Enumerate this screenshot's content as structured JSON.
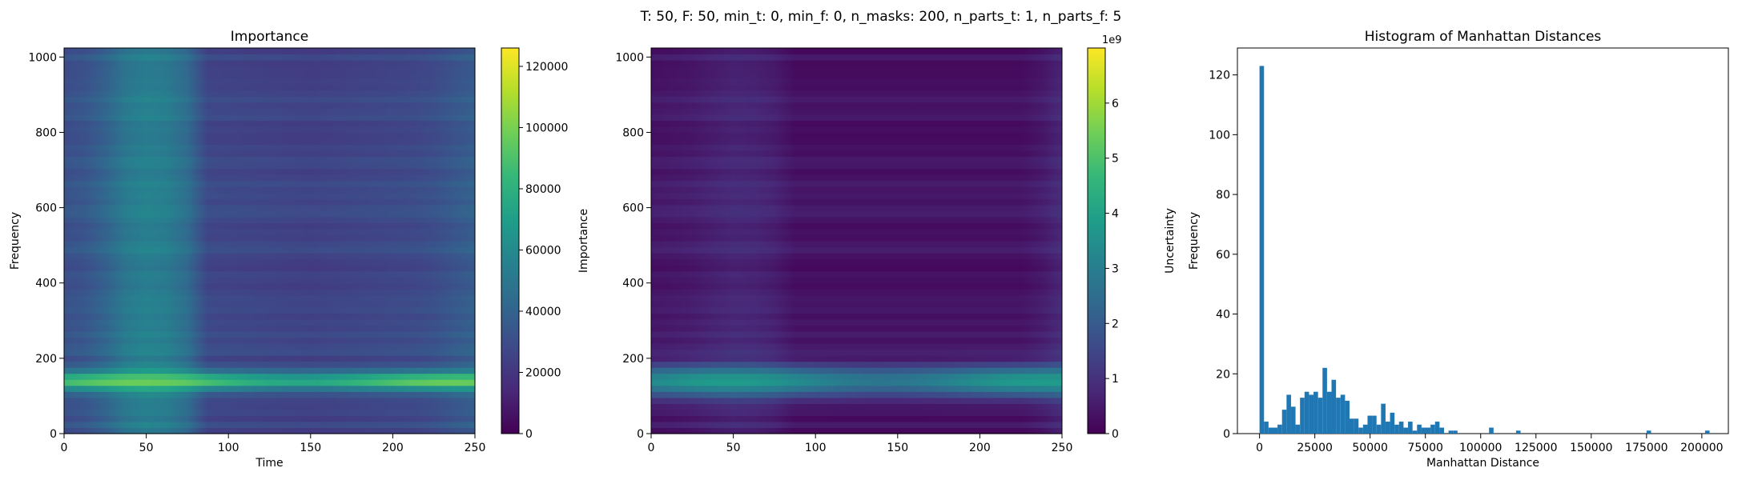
{
  "suptitle": "T: 50, F: 50, min_t: 0, min_f: 0, n_masks: 200, n_parts_t: 1, n_parts_f: 5",
  "chart_data": [
    {
      "type": "heatmap",
      "title": "Importance",
      "xlabel": "Time",
      "ylabel": "Frequency",
      "xlim": [
        0,
        250
      ],
      "ylim": [
        0,
        1024
      ],
      "xticks": [
        0,
        50,
        100,
        150,
        200,
        250
      ],
      "yticks": [
        0,
        200,
        400,
        600,
        800,
        1000
      ],
      "colormap": "viridis",
      "colorbar": {
        "label": "Importance",
        "range": [
          0,
          126000
        ],
        "ticks": [
          0,
          20000,
          40000,
          60000,
          80000,
          100000,
          120000
        ],
        "offset_text": ""
      },
      "time_profile": [
        {
          "t": 0,
          "v": 0.25
        },
        {
          "t": 20,
          "v": 0.28
        },
        {
          "t": 30,
          "v": 0.36
        },
        {
          "t": 42,
          "v": 0.43
        },
        {
          "t": 55,
          "v": 0.44
        },
        {
          "t": 70,
          "v": 0.4
        },
        {
          "t": 78,
          "v": 0.33
        },
        {
          "t": 82,
          "v": 0.22
        },
        {
          "t": 150,
          "v": 0.2
        },
        {
          "t": 220,
          "v": 0.23
        },
        {
          "t": 240,
          "v": 0.28
        },
        {
          "t": 250,
          "v": 0.3
        }
      ],
      "bright_band": {
        "center": 140,
        "width": 24,
        "peak": 0.78
      }
    },
    {
      "type": "heatmap",
      "title": "",
      "xlabel": "",
      "ylabel": "",
      "xlim": [
        0,
        250
      ],
      "ylim": [
        0,
        1024
      ],
      "xticks": [
        0,
        50,
        100,
        150,
        200,
        250
      ],
      "yticks": [
        0,
        200,
        400,
        600,
        800,
        1000
      ],
      "colormap": "viridis",
      "colorbar": {
        "label": "Uncertainty",
        "range": [
          0,
          7.0
        ],
        "ticks": [
          0,
          1,
          2,
          3,
          4,
          5,
          6
        ],
        "offset_text": "1e9"
      },
      "time_profile": [
        {
          "t": 0,
          "v": 0.06
        },
        {
          "t": 30,
          "v": 0.08
        },
        {
          "t": 45,
          "v": 0.11
        },
        {
          "t": 60,
          "v": 0.11
        },
        {
          "t": 75,
          "v": 0.09
        },
        {
          "t": 85,
          "v": 0.05
        },
        {
          "t": 230,
          "v": 0.05
        },
        {
          "t": 245,
          "v": 0.1
        },
        {
          "t": 250,
          "v": 0.12
        }
      ],
      "bright_band": {
        "center": 140,
        "width": 40,
        "peak": 0.55
      }
    },
    {
      "type": "bar",
      "title": "Histogram of Manhattan Distances",
      "xlabel": "Manhattan Distance",
      "ylabel": "Frequency",
      "xlim": [
        -10000,
        212000
      ],
      "ylim": [
        0,
        129
      ],
      "xticks": [
        0,
        25000,
        50000,
        75000,
        100000,
        125000,
        150000,
        175000,
        200000
      ],
      "yticks": [
        0,
        20,
        40,
        60,
        80,
        100,
        120
      ],
      "color": "#1f77b4",
      "bin_width": 2035,
      "bin_start": 0,
      "counts": [
        123,
        4,
        2,
        2,
        3,
        8,
        13,
        9,
        3,
        12,
        14,
        13,
        14,
        12,
        22,
        14,
        18,
        12,
        13,
        11,
        5,
        5,
        2,
        3,
        6,
        6,
        3,
        10,
        4,
        7,
        3,
        4,
        2,
        4,
        1,
        3,
        2,
        2,
        3,
        4,
        2,
        0,
        1,
        1,
        0,
        0,
        0,
        0,
        0,
        0,
        0,
        2,
        0,
        0,
        0,
        0,
        0,
        1,
        0,
        0,
        0,
        0,
        0,
        0,
        0,
        0,
        0,
        0,
        0,
        0,
        0,
        0,
        0,
        0,
        0,
        0,
        0,
        0,
        0,
        0,
        0,
        0,
        0,
        0,
        0,
        0,
        1,
        0,
        0,
        0,
        0,
        0,
        0,
        0,
        0,
        0,
        0,
        0,
        0,
        1
      ]
    }
  ]
}
